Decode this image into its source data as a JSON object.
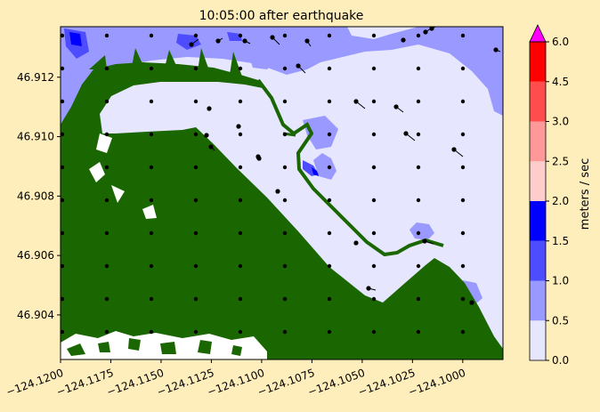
{
  "chart_data": {
    "type": "heatmap",
    "title": "10:05:00 after earthquake",
    "xlabel": "",
    "ylabel": "",
    "xlim": [
      -124.12,
      -124.098
    ],
    "ylim": [
      46.9025,
      46.9137
    ],
    "x_ticks": [
      -124.12,
      -124.1175,
      -124.115,
      -124.1125,
      -124.11,
      -124.1075,
      -124.105,
      -124.1025,
      -124.1
    ],
    "x_tick_labels": [
      "−124.1200",
      "−124.1175",
      "−124.1150",
      "−124.1125",
      "−124.1100",
      "−124.1075",
      "−124.1050",
      "−124.1025",
      "−124.1000"
    ],
    "y_ticks": [
      46.904,
      46.906,
      46.908,
      46.91,
      46.912
    ],
    "y_tick_labels": [
      "46.904",
      "46.906",
      "46.908",
      "46.910",
      "46.912"
    ],
    "colorbar": {
      "label": "meters / sec",
      "levels": [
        0.0,
        0.5,
        1.0,
        1.5,
        2.0,
        2.5,
        3.0,
        4.5,
        6.0
      ],
      "tick_labels": [
        "0.0",
        "0.5",
        "1.0",
        "1.5",
        "2.0",
        "2.5",
        "3.0",
        "4.5",
        "6.0"
      ],
      "colors": [
        "#E6E6FF",
        "#9999FF",
        "#4D4DFF",
        "#0000FF",
        "#FFCCCC",
        "#FF9999",
        "#FF4D4D",
        "#FF0000"
      ],
      "over_color": "#FF00FF",
      "extend": "max"
    },
    "land_color": "#1A6600",
    "velocity_arrow_color": "#000000"
  }
}
